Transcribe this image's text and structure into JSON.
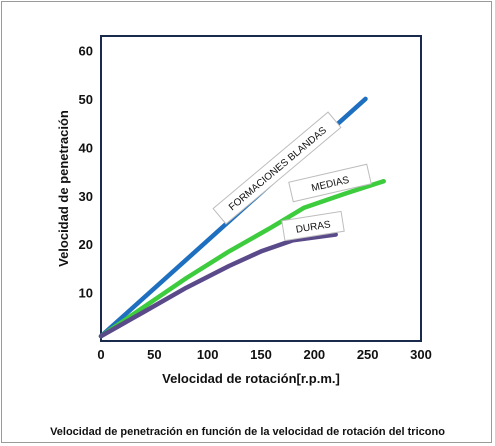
{
  "caption": "Velocidad de penetración en función de la velocidad de rotación del tricono",
  "chart_data": {
    "type": "line",
    "title": "",
    "xlabel": "Velocidad de rotación[r.p.m.]",
    "ylabel": "Velocidad de penetración",
    "xlim": [
      0,
      300
    ],
    "ylim": [
      0,
      63
    ],
    "x_ticks": [
      "0",
      "50",
      "100",
      "150",
      "200",
      "250",
      "300"
    ],
    "y_ticks": [
      "10",
      "20",
      "30",
      "40",
      "50",
      "60"
    ],
    "grid": false,
    "series": [
      {
        "name": "FORMACIONES BLANDAS",
        "color": "#1e6fc0",
        "points": [
          [
            0,
            1
          ],
          [
            248,
            50
          ]
        ]
      },
      {
        "name": "MEDIAS",
        "color": "#3dcc3d",
        "points": [
          [
            0,
            1
          ],
          [
            40,
            7
          ],
          [
            80,
            13
          ],
          [
            120,
            18.5
          ],
          [
            160,
            23.5
          ],
          [
            190,
            27.5
          ],
          [
            230,
            30.5
          ],
          [
            265,
            33
          ]
        ]
      },
      {
        "name": "DURAS",
        "color": "#5a4a8a",
        "points": [
          [
            0,
            1
          ],
          [
            40,
            6
          ],
          [
            80,
            11
          ],
          [
            120,
            15.5
          ],
          [
            150,
            18.5
          ],
          [
            180,
            20.8
          ],
          [
            220,
            22
          ]
        ]
      }
    ]
  }
}
